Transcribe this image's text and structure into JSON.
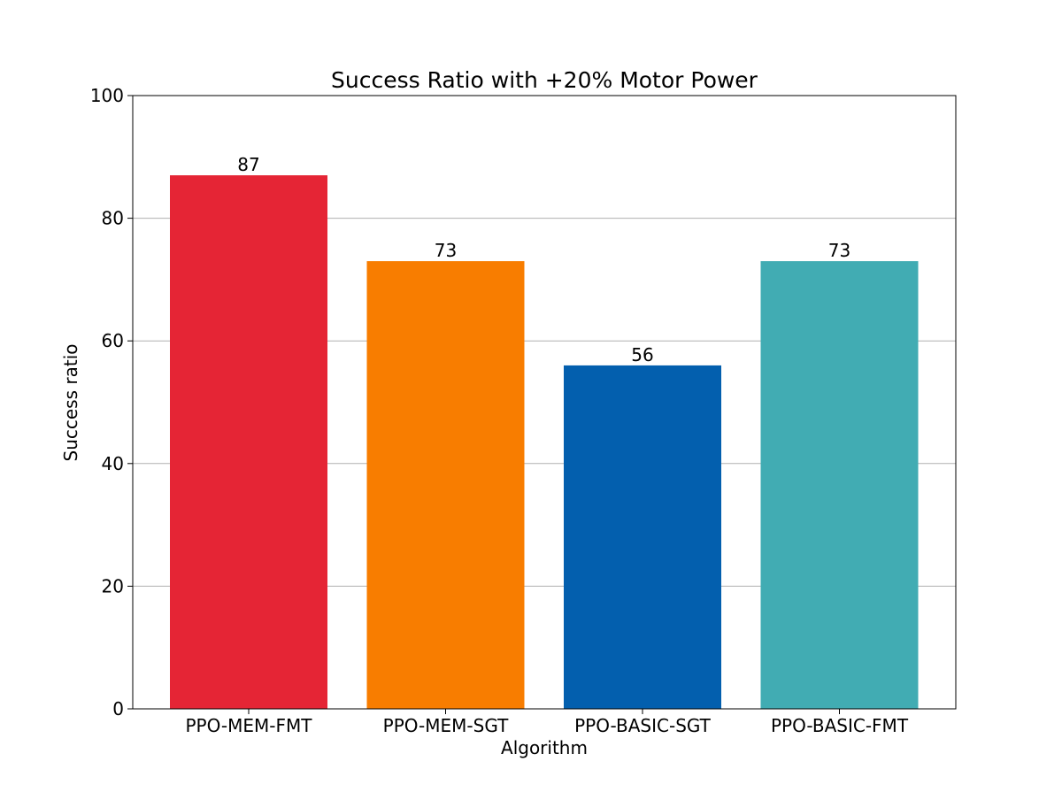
{
  "chart_data": {
    "type": "bar",
    "title": "Success Ratio with +20% Motor Power",
    "xlabel": "Algorithm",
    "ylabel": "Success ratio",
    "categories": [
      "PPO-MEM-FMT",
      "PPO-MEM-SGT",
      "PPO-BASIC-SGT",
      "PPO-BASIC-FMT"
    ],
    "values": [
      87,
      73,
      56,
      73
    ],
    "data_labels": [
      "87",
      "73",
      "56",
      "73"
    ],
    "colors": [
      "#e52535",
      "#f87d00",
      "#035fae",
      "#41acb3"
    ],
    "ylim": [
      0,
      100
    ],
    "yticks": [
      0,
      20,
      40,
      60,
      80,
      100
    ],
    "ytick_labels": [
      "0",
      "20",
      "40",
      "60",
      "80",
      "100"
    ],
    "grid": "horizontal",
    "grid_color": "#b0b0b0",
    "legend": "none"
  }
}
